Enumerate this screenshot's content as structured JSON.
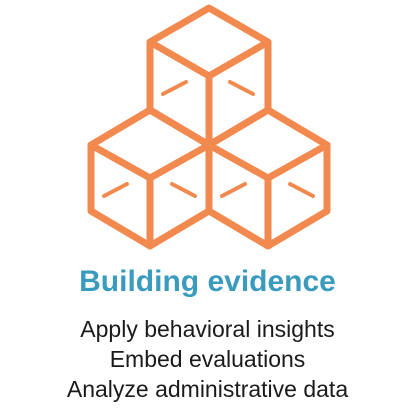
{
  "graphic": {
    "icon": "stacked-cubes-icon",
    "stroke_color": "#f28a50"
  },
  "title": "Building evidence",
  "title_color": "#3b9bbf",
  "items": [
    "Apply behavioral insights",
    "Embed evaluations",
    "Analyze administrative data"
  ],
  "text_color": "#1a1a1a"
}
